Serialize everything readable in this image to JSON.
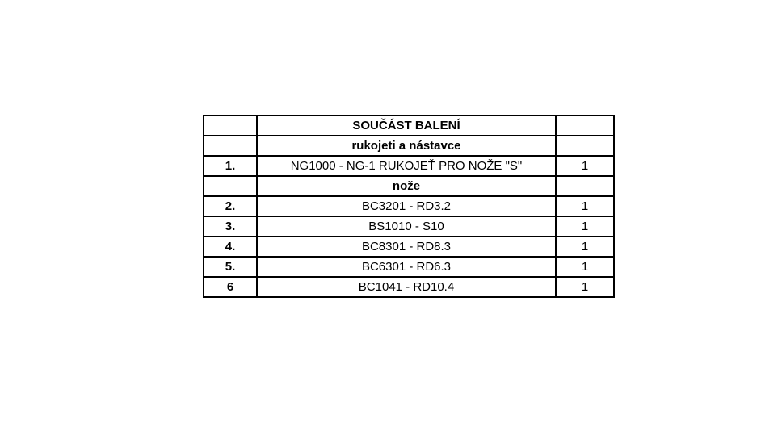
{
  "page": {
    "background_color": "#ffffff",
    "border_color": "#000000",
    "text_color": "#000000"
  },
  "table": {
    "rows": [
      {
        "type": "header",
        "num": "",
        "name": "SOUČÁST BALENÍ",
        "qty": ""
      },
      {
        "type": "header",
        "num": "",
        "name": "rukojeti a nástavce",
        "qty": ""
      },
      {
        "type": "item",
        "num": "1.",
        "name": "NG1000 - NG-1 RUKOJEŤ PRO NOŽE \"S\"",
        "qty": "1"
      },
      {
        "type": "header",
        "num": "",
        "name": "nože",
        "qty": ""
      },
      {
        "type": "item",
        "num": "2.",
        "name": "BC3201 - RD3.2",
        "qty": "1"
      },
      {
        "type": "item",
        "num": "3.",
        "name": "BS1010 - S10",
        "qty": "1"
      },
      {
        "type": "item",
        "num": "4.",
        "name": "BC8301 - RD8.3",
        "qty": "1"
      },
      {
        "type": "item",
        "num": "5.",
        "name": "BC6301 - RD6.3",
        "qty": "1"
      },
      {
        "type": "item",
        "num": "6",
        "name": "BC1041 - RD10.4",
        "qty": "1"
      }
    ]
  }
}
